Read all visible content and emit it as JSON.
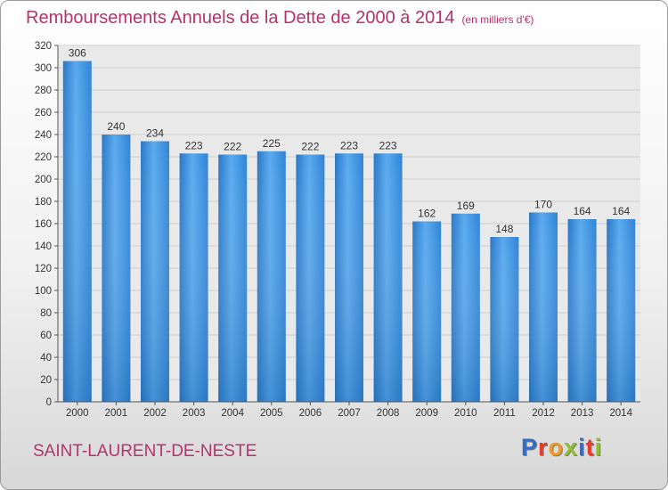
{
  "header": {
    "title": "Remboursements Annuels de la Dette de 2000 à 2014",
    "unit": "(en milliers d'€)"
  },
  "footer": {
    "commune": "SAINT-LAURENT-DE-NESTE",
    "logo_text": "Proxiti",
    "logo_colors": [
      "#2f6fc9",
      "#e63c2e",
      "#f29a1f",
      "#8fbf2e",
      "#2f6fc9",
      "#e63c2e",
      "#8fbf2e"
    ]
  },
  "chart_data": {
    "type": "bar",
    "title": "Remboursements Annuels de la Dette de 2000 à 2014",
    "subtitle": "(en milliers d'€)",
    "xlabel": "",
    "ylabel": "",
    "categories": [
      "2000",
      "2001",
      "2002",
      "2003",
      "2004",
      "2005",
      "2006",
      "2007",
      "2008",
      "2009",
      "2010",
      "2011",
      "2012",
      "2013",
      "2014"
    ],
    "values": [
      306,
      240,
      234,
      223,
      222,
      225,
      222,
      223,
      223,
      162,
      169,
      148,
      170,
      164,
      164
    ],
    "ylim": [
      0,
      320
    ],
    "yticks": [
      0,
      20,
      40,
      60,
      80,
      100,
      120,
      140,
      160,
      180,
      200,
      220,
      240,
      260,
      280,
      300,
      320
    ],
    "grid": true,
    "bar_color": "#3a8fdc",
    "title_color": "#b5336a"
  }
}
